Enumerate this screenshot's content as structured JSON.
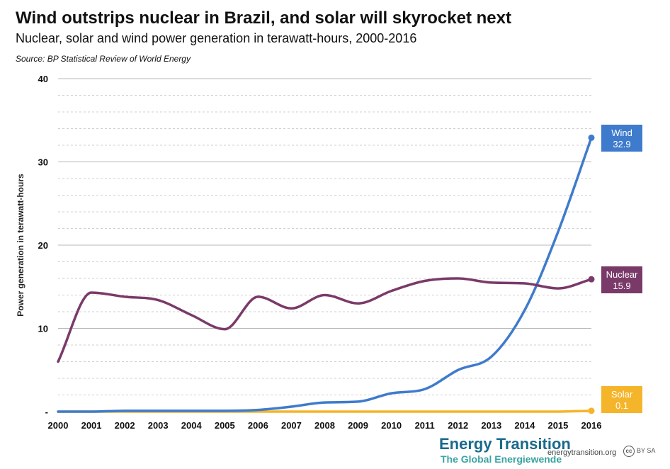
{
  "header": {
    "title": "Wind outstrips nuclear in Brazil, and solar will skyrocket next",
    "subtitle": "Nuclear, solar and wind power generation in terawatt-hours, 2000-2016",
    "source": "Source: BP Statistical Review of World Energy"
  },
  "footer": {
    "logo_line1": "Energy Transition",
    "logo_line2": "The Global Energiewende",
    "url": "energytransition.org",
    "license": "BY SA"
  },
  "chart_data": {
    "type": "line",
    "title": "Wind outstrips nuclear in Brazil, and solar will skyrocket next",
    "subtitle": "Nuclear, solar and wind power generation in terawatt-hours, 2000-2016",
    "xlabel": "",
    "ylabel": "Power generation in terawatt-hours",
    "x": [
      2000,
      2001,
      2002,
      2003,
      2004,
      2005,
      2006,
      2007,
      2008,
      2009,
      2010,
      2011,
      2012,
      2013,
      2014,
      2015,
      2016
    ],
    "xtick_labels": [
      "2000",
      "2001",
      "2002",
      "2003",
      "2004",
      "2005",
      "2006",
      "2007",
      "2008",
      "2009",
      "2010",
      "2011",
      "2012",
      "2013",
      "2014",
      "2015",
      "2016"
    ],
    "ylim": [
      0,
      40
    ],
    "yticks": [
      0,
      10,
      20,
      30,
      40
    ],
    "ytick_labels": [
      "-",
      "10",
      "20",
      "30",
      "40"
    ],
    "grid": true,
    "series": [
      {
        "name": "Wind",
        "color": "#3f7bcc",
        "end_label": "32.9",
        "values": [
          0.0,
          0.0,
          0.1,
          0.1,
          0.1,
          0.1,
          0.2,
          0.6,
          1.1,
          1.2,
          2.2,
          2.7,
          5.0,
          6.6,
          12.2,
          21.6,
          32.9
        ]
      },
      {
        "name": "Nuclear",
        "color": "#7a3a69",
        "end_label": "15.9",
        "values": [
          6.0,
          14.3,
          13.8,
          13.4,
          11.6,
          9.9,
          13.8,
          12.4,
          14.0,
          13.0,
          14.5,
          15.7,
          16.0,
          15.5,
          15.4,
          14.8,
          15.9
        ]
      },
      {
        "name": "Solar",
        "color": "#f5b52a",
        "end_label": "0.1",
        "values": [
          0,
          0,
          0,
          0,
          0,
          0,
          0,
          0,
          0,
          0,
          0,
          0,
          0,
          0,
          0,
          0,
          0.1
        ]
      }
    ]
  }
}
